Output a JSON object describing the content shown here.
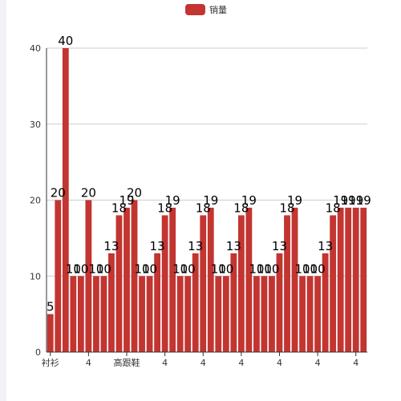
{
  "chart_data": {
    "type": "bar",
    "legend": {
      "label": "销量",
      "position": "top-center"
    },
    "series": [
      {
        "name": "销量",
        "color": "#c23531",
        "values": [
          5,
          20,
          40,
          10,
          10,
          20,
          10,
          10,
          13,
          18,
          19,
          20,
          10,
          10,
          13,
          18,
          19,
          10,
          10,
          13,
          18,
          19,
          10,
          10,
          13,
          18,
          19,
          10,
          10,
          10,
          13,
          18,
          19,
          10,
          10,
          10,
          13,
          18,
          19,
          19,
          19,
          19
        ]
      }
    ],
    "categories": [
      "衬衫",
      "",
      "",
      "",
      "",
      "4",
      "",
      "",
      "",
      "",
      "高跟鞋",
      "",
      "",
      "",
      "",
      "4",
      "",
      "",
      "",
      "",
      "4",
      "",
      "",
      "",
      "",
      "4",
      "",
      "",
      "",
      "",
      "4",
      "",
      "",
      "",
      "",
      "4",
      "",
      "",
      "",
      "",
      "4",
      ""
    ],
    "yaxis": {
      "min": 0,
      "max": 40,
      "ticks": [
        0,
        10,
        20,
        30,
        40
      ]
    },
    "grid": true
  }
}
